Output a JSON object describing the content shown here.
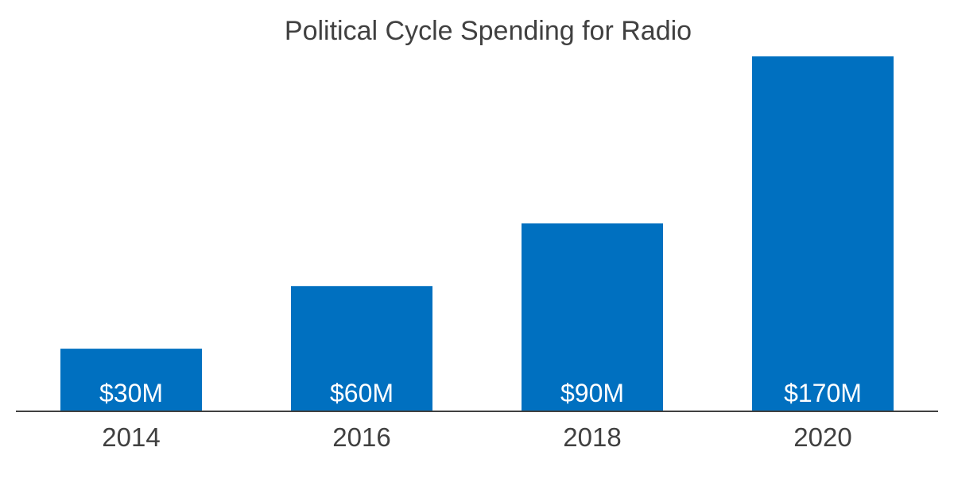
{
  "chart_data": {
    "type": "bar",
    "title": "Political Cycle Spending for Radio",
    "xlabel": "",
    "ylabel": "",
    "categories": [
      "2014",
      "2016",
      "2018",
      "2020"
    ],
    "values": [
      30,
      60,
      90,
      170
    ],
    "data_labels": [
      "$30M",
      "$60M",
      "$90M",
      "$170M"
    ],
    "ylim": [
      0,
      170
    ],
    "grid": false,
    "legend": "none",
    "colors": {
      "bar": "#0070C0",
      "axis": "#404040",
      "text": "#404040"
    }
  }
}
